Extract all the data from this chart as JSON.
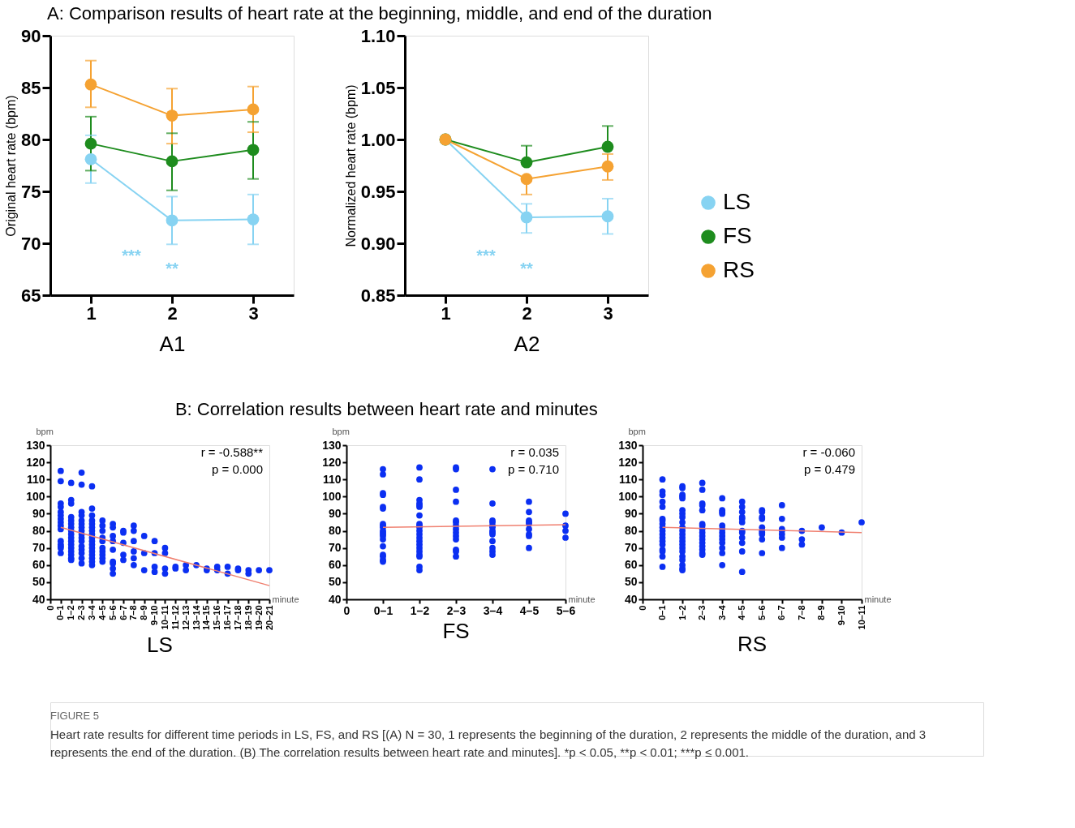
{
  "chart_data": [
    {
      "type": "line",
      "title": "A: Comparison results of heart rate at the beginning, middle, and end of the duration",
      "xlabel": "A1",
      "ylabel": "Original heart rate (bpm)",
      "x": [
        1,
        2,
        3
      ],
      "xlim": [
        0.5,
        3.5
      ],
      "xticks": [
        1,
        2,
        3
      ],
      "ylim": [
        65,
        90
      ],
      "yticks": [
        65,
        70,
        75,
        80,
        85,
        90
      ],
      "grid": false,
      "legend": false,
      "marker": "circle",
      "series": [
        {
          "color": "#87d3f2",
          "values": [
            78.1,
            72.2,
            72.3
          ],
          "errors": [
            [
              75.8,
              80.4
            ],
            [
              69.9,
              74.5
            ],
            [
              69.9,
              74.7
            ]
          ]
        },
        {
          "color": "#1e8c1e",
          "values": [
            79.6,
            77.9,
            79.0
          ],
          "errors": [
            [
              77.0,
              82.2
            ],
            [
              75.1,
              80.6
            ],
            [
              76.2,
              81.7
            ]
          ]
        },
        {
          "color": "#f5a232",
          "values": [
            85.3,
            82.3,
            82.9
          ],
          "errors": [
            [
              83.1,
              87.6
            ],
            [
              79.6,
              84.9
            ],
            [
              80.7,
              85.1
            ]
          ]
        }
      ],
      "annotations": [
        "***",
        "**"
      ]
    },
    {
      "type": "line",
      "xlabel": "A2",
      "ylabel": "Normalized heart rate (bpm)",
      "x": [
        1,
        2,
        3
      ],
      "xlim": [
        0.5,
        3.5
      ],
      "xticks": [
        1,
        2,
        3
      ],
      "ylim": [
        0.85,
        1.1
      ],
      "yticks": [
        {
          "value": 0.85,
          "label": "0.85"
        },
        {
          "value": 0.9,
          "label": "0.90"
        },
        {
          "value": 0.95,
          "label": "0.95"
        },
        {
          "value": 1.0,
          "label": "1.00"
        },
        {
          "value": 1.05,
          "label": "1.05"
        },
        {
          "value": 1.1,
          "label": "1.10"
        }
      ],
      "grid": false,
      "legend": "right",
      "marker": "circle",
      "series": [
        {
          "name": "LS",
          "color": "#87d3f2",
          "values": [
            1.0,
            0.925,
            0.926
          ],
          "errors": [
            null,
            [
              0.91,
              0.938
            ],
            [
              0.909,
              0.943
            ]
          ]
        },
        {
          "name": "FS",
          "color": "#1e8c1e",
          "values": [
            1.0,
            0.978,
            0.993
          ],
          "errors": [
            null,
            [
              0.978,
              0.994
            ],
            [
              0.993,
              1.013
            ]
          ]
        },
        {
          "name": "RS",
          "color": "#f5a232",
          "values": [
            1.0,
            0.962,
            0.974
          ],
          "errors": [
            null,
            [
              0.947,
              0.962
            ],
            [
              0.961,
              0.986
            ]
          ]
        }
      ],
      "annotations": [
        "***",
        "**"
      ]
    },
    {
      "type": "scatter",
      "title": "B: Correlation results between heart rate and minutes",
      "subtitle": "LS",
      "xlabel": "minute",
      "ylabel": "bpm",
      "categories": [
        "0",
        "0–1",
        "1–2",
        "2–3",
        "3–4",
        "4–5",
        "5–6",
        "6–7",
        "7–8",
        "8–9",
        "9–10",
        "10–11",
        "11–12",
        "12–13",
        "13–14",
        "14–15",
        "15–16",
        "16–17",
        "17–18",
        "18–19",
        "19–20",
        "20–21"
      ],
      "ylim": [
        40,
        130
      ],
      "yticks": [
        40,
        50,
        60,
        70,
        80,
        90,
        100,
        110,
        120,
        130
      ],
      "grid": false,
      "marker": "circle",
      "series": [
        {
          "color": "#0b2ff2",
          "x": [
            "0–1",
            "0–1",
            "0–1",
            "0–1",
            "0–1",
            "0–1",
            "0–1",
            "0–1",
            "0–1",
            "0–1",
            "0–1",
            "0–1",
            "0–1",
            "0–1",
            "0–1",
            "1–2",
            "1–2",
            "1–2",
            "1–2",
            "1–2",
            "1–2",
            "1–2",
            "1–2",
            "1–2",
            "1–2",
            "1–2",
            "1–2",
            "1–2",
            "1–2",
            "1–2",
            "1–2",
            "1–2",
            "2–3",
            "2–3",
            "2–3",
            "2–3",
            "2–3",
            "2–3",
            "2–3",
            "2–3",
            "2–3",
            "2–3",
            "2–3",
            "2–3",
            "2–3",
            "2–3",
            "2–3",
            "2–3",
            "3–4",
            "3–4",
            "3–4",
            "3–4",
            "3–4",
            "3–4",
            "3–4",
            "3–4",
            "3–4",
            "3–4",
            "3–4",
            "3–4",
            "3–4",
            "3–4",
            "3–4",
            "3–4",
            "3–4",
            "4–5",
            "4–5",
            "4–5",
            "4–5",
            "4–5",
            "4–5",
            "4–5",
            "4–5",
            "4–5",
            "4–5",
            "5–6",
            "5–6",
            "5–6",
            "5–6",
            "5–6",
            "5–6",
            "5–6",
            "5–6",
            "5–6",
            "6–7",
            "6–7",
            "6–7",
            "6–7",
            "6–7",
            "7–8",
            "7–8",
            "7–8",
            "7–8",
            "7–8",
            "7–8",
            "8–9",
            "8–9",
            "8–9",
            "9–10",
            "9–10",
            "9–10",
            "9–10",
            "10–11",
            "10–11",
            "10–11",
            "10–11",
            "11–12",
            "11–12",
            "12–13",
            "12–13",
            "13–14",
            "14–15",
            "14–15",
            "15–16",
            "15–16",
            "16–17",
            "16–17",
            "17–18",
            "17–18",
            "18–19",
            "18–19",
            "19–20",
            "20–21"
          ],
          "values": [
            115,
            109,
            96,
            94,
            91,
            89,
            87,
            85,
            83,
            81,
            74,
            72,
            71,
            70,
            67,
            108,
            98,
            96,
            88,
            86,
            84,
            82,
            80,
            78,
            76,
            74,
            72,
            70,
            68,
            66,
            64,
            63,
            114,
            107,
            91,
            89,
            86,
            84,
            82,
            80,
            78,
            76,
            74,
            71,
            69,
            67,
            64,
            61,
            106,
            93,
            89,
            86,
            84,
            82,
            80,
            78,
            76,
            74,
            72,
            70,
            68,
            66,
            64,
            62,
            60,
            86,
            83,
            80,
            76,
            74,
            70,
            68,
            66,
            64,
            62,
            84,
            82,
            77,
            74,
            69,
            62,
            61,
            58,
            55,
            80,
            79,
            73,
            66,
            63,
            83,
            80,
            74,
            68,
            64,
            60,
            77,
            67,
            57,
            74,
            67,
            59,
            56,
            70,
            67,
            58,
            55,
            59,
            58,
            60,
            57,
            60,
            58,
            57,
            59,
            57,
            59,
            55,
            58,
            57,
            57,
            55,
            57,
            57
          ]
        },
        {
          "type": "line",
          "marker": "none",
          "color": "#f08070",
          "x": [
            "0–1",
            "20–21"
          ],
          "values": [
            82,
            48
          ]
        }
      ],
      "annotations": [
        "r = -0.588**",
        "p = 0.000"
      ]
    },
    {
      "type": "scatter",
      "subtitle": "FS",
      "xlabel": "minute",
      "ylabel": "bpm",
      "categories": [
        "0",
        "0–1",
        "1–2",
        "2–3",
        "3–4",
        "4–5",
        "5–6"
      ],
      "ylim": [
        40,
        130
      ],
      "yticks": [
        40,
        50,
        60,
        70,
        80,
        90,
        100,
        110,
        120,
        130
      ],
      "grid": false,
      "marker": "circle",
      "series": [
        {
          "color": "#0b2ff2",
          "x": [
            "0–1",
            "0–1",
            "0–1",
            "0–1",
            "0–1",
            "0–1",
            "0–1",
            "0–1",
            "0–1",
            "0–1",
            "0–1",
            "0–1",
            "0–1",
            "0–1",
            "0–1",
            "0–1",
            "0–1",
            "0–1",
            "0–1",
            "1–2",
            "1–2",
            "1–2",
            "1–2",
            "1–2",
            "1–2",
            "1–2",
            "1–2",
            "1–2",
            "1–2",
            "1–2",
            "1–2",
            "1–2",
            "1–2",
            "1–2",
            "1–2",
            "1–2",
            "1–2",
            "1–2",
            "1–2",
            "1–2",
            "2–3",
            "2–3",
            "2–3",
            "2–3",
            "2–3",
            "2–3",
            "2–3",
            "2–3",
            "2–3",
            "2–3",
            "2–3",
            "2–3",
            "2–3",
            "2–3",
            "3–4",
            "3–4",
            "3–4",
            "3–4",
            "3–4",
            "3–4",
            "3–4",
            "3–4",
            "3–4",
            "3–4",
            "3–4",
            "3–4",
            "3–4",
            "4–5",
            "4–5",
            "4–5",
            "4–5",
            "4–5",
            "4–5",
            "4–5",
            "4–5",
            "4–5",
            "5–6",
            "5–6",
            "5–6",
            "5–6"
          ],
          "values": [
            116,
            113,
            102,
            101,
            94,
            93,
            84,
            83,
            82,
            80,
            79,
            78,
            77,
            75,
            71,
            66,
            65,
            63,
            62,
            117,
            110,
            98,
            96,
            95,
            94,
            89,
            84,
            83,
            82,
            80,
            78,
            76,
            74,
            72,
            70,
            68,
            66,
            65,
            59,
            57,
            117,
            116,
            104,
            97,
            86,
            85,
            83,
            81,
            79,
            77,
            75,
            69,
            68,
            65,
            116,
            96,
            86,
            85,
            83,
            82,
            80,
            79,
            78,
            74,
            70,
            68,
            66,
            97,
            91,
            86,
            85,
            84,
            81,
            78,
            77,
            70,
            90,
            83,
            80,
            76
          ]
        },
        {
          "type": "line",
          "marker": "none",
          "color": "#f08070",
          "x": [
            "0–1",
            "5–6"
          ],
          "values": [
            82,
            83.6
          ]
        }
      ],
      "annotations": [
        "r = 0.035",
        "p = 0.710"
      ]
    },
    {
      "type": "scatter",
      "subtitle": "RS",
      "xlabel": "minute",
      "ylabel": "bpm",
      "categories": [
        "0",
        "0–1",
        "1–2",
        "2–3",
        "3–4",
        "4–5",
        "5–6",
        "6–7",
        "7–8",
        "8–9",
        "9–10",
        "10–11"
      ],
      "ylim": [
        40,
        130
      ],
      "yticks": [
        40,
        50,
        60,
        70,
        80,
        90,
        100,
        110,
        120,
        130
      ],
      "grid": false,
      "marker": "circle",
      "series": [
        {
          "color": "#0b2ff2",
          "x": [
            "0–1",
            "0–1",
            "0–1",
            "0–1",
            "0–1",
            "0–1",
            "0–1",
            "0–1",
            "0–1",
            "0–1",
            "0–1",
            "0–1",
            "0–1",
            "0–1",
            "0–1",
            "0–1",
            "0–1",
            "0–1",
            "1–2",
            "1–2",
            "1–2",
            "1–2",
            "1–2",
            "1–2",
            "1–2",
            "1–2",
            "1–2",
            "1–2",
            "1–2",
            "1–2",
            "1–2",
            "1–2",
            "1–2",
            "1–2",
            "1–2",
            "1–2",
            "1–2",
            "1–2",
            "1–2",
            "1–2",
            "2–3",
            "2–3",
            "2–3",
            "2–3",
            "2–3",
            "2–3",
            "2–3",
            "2–3",
            "2–3",
            "2–3",
            "2–3",
            "2–3",
            "2–3",
            "2–3",
            "2–3",
            "2–3",
            "3–4",
            "3–4",
            "3–4",
            "3–4",
            "3–4",
            "3–4",
            "3–4",
            "3–4",
            "3–4",
            "3–4",
            "3–4",
            "3–4",
            "3–4",
            "4–5",
            "4–5",
            "4–5",
            "4–5",
            "4–5",
            "4–5",
            "4–5",
            "4–5",
            "4–5",
            "4–5",
            "4–5",
            "4–5",
            "5–6",
            "5–6",
            "5–6",
            "5–6",
            "5–6",
            "5–6",
            "5–6",
            "5–6",
            "5–6",
            "5–6",
            "6–7",
            "6–7",
            "6–7",
            "6–7",
            "6–7",
            "6–7",
            "6–7",
            "7–8",
            "7–8",
            "7–8",
            "8–9",
            "9–10",
            "10–11"
          ],
          "values": [
            110,
            103,
            101,
            97,
            94,
            87,
            86,
            84,
            82,
            80,
            78,
            76,
            74,
            72,
            69,
            68,
            65,
            59,
            106,
            105,
            101,
            100,
            99,
            92,
            90,
            88,
            85,
            82,
            80,
            78,
            76,
            74,
            72,
            70,
            68,
            65,
            63,
            60,
            58,
            57,
            108,
            104,
            96,
            95,
            92,
            84,
            83,
            81,
            79,
            77,
            75,
            73,
            71,
            69,
            67,
            66,
            99,
            92,
            91,
            90,
            83,
            81,
            79,
            77,
            75,
            73,
            70,
            67,
            60,
            97,
            94,
            91,
            88,
            87,
            85,
            80,
            79,
            76,
            73,
            68,
            56,
            92,
            91,
            88,
            87,
            82,
            80,
            79,
            78,
            75,
            67,
            95,
            87,
            81,
            80,
            78,
            76,
            70,
            80,
            75,
            72,
            82,
            79,
            85
          ]
        },
        {
          "type": "line",
          "marker": "none",
          "color": "#f08070",
          "x": [
            "0–1",
            "10–11"
          ],
          "values": [
            82,
            79
          ]
        }
      ],
      "annotations": [
        "r = -0.060",
        "p = 0.479"
      ]
    },
    {
      "type": "other",
      "annotations": [
        "FIGURE 5",
        "Heart rate results for different time periods in LS, FS, and RS [(A) N = 30, 1 represents the beginning of the duration, 2 represents the middle of the duration, and 3 represents the end of the duration. (B) The correlation results between heart rate and minutes]. *p < 0.05, **p < 0.01; ***p ≤ 0.001."
      ]
    }
  ]
}
